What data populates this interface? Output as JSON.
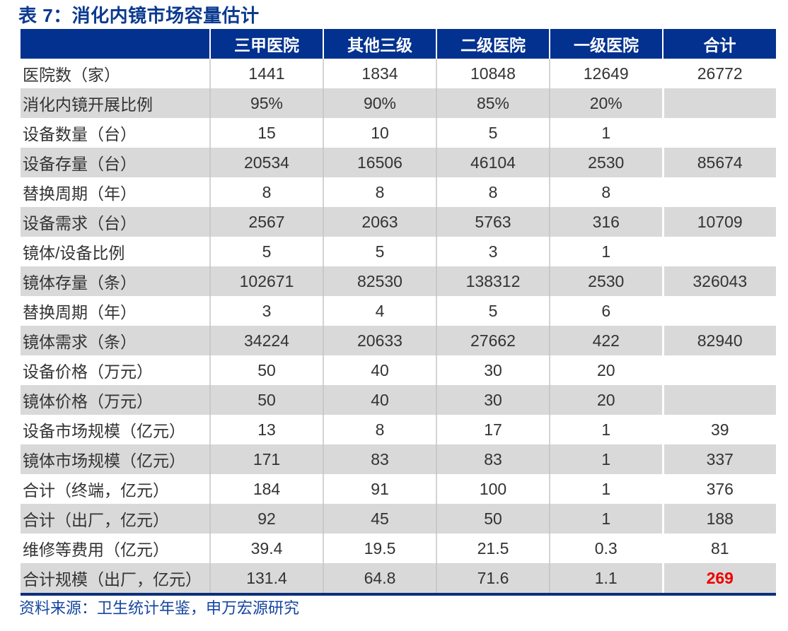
{
  "title": "表 7：消化内镜市场容量估计",
  "table": {
    "headers": [
      "",
      "三甲医院",
      "其他三级",
      "二级医院",
      "一级医院",
      "合计"
    ],
    "rows": [
      {
        "label": "医院数（家）",
        "values": [
          "1441",
          "1834",
          "10848",
          "12649",
          "26772"
        ]
      },
      {
        "label": "消化内镜开展比例",
        "values": [
          "95%",
          "90%",
          "85%",
          "20%",
          ""
        ]
      },
      {
        "label": "设备数量（台）",
        "values": [
          "15",
          "10",
          "5",
          "1",
          ""
        ]
      },
      {
        "label": "设备存量（台）",
        "values": [
          "20534",
          "16506",
          "46104",
          "2530",
          "85674"
        ]
      },
      {
        "label": "替换周期（年）",
        "values": [
          "8",
          "8",
          "8",
          "8",
          ""
        ]
      },
      {
        "label": "设备需求（台）",
        "values": [
          "2567",
          "2063",
          "5763",
          "316",
          "10709"
        ]
      },
      {
        "label": "镜体/设备比例",
        "values": [
          "5",
          "5",
          "3",
          "1",
          ""
        ]
      },
      {
        "label": "镜体存量（条）",
        "values": [
          "102671",
          "82530",
          "138312",
          "2530",
          "326043"
        ]
      },
      {
        "label": "替换周期（年）",
        "values": [
          "3",
          "4",
          "5",
          "6",
          ""
        ]
      },
      {
        "label": "镜体需求（条）",
        "values": [
          "34224",
          "20633",
          "27662",
          "422",
          "82940"
        ]
      },
      {
        "label": "设备价格（万元）",
        "values": [
          "50",
          "40",
          "30",
          "20",
          ""
        ]
      },
      {
        "label": "镜体价格（万元）",
        "values": [
          "50",
          "40",
          "30",
          "20",
          ""
        ]
      },
      {
        "label": "设备市场规模（亿元）",
        "values": [
          "13",
          "8",
          "17",
          "1",
          "39"
        ]
      },
      {
        "label": "镜体市场规模（亿元）",
        "values": [
          "171",
          "83",
          "83",
          "1",
          "337"
        ]
      },
      {
        "label": "合计（终端，亿元）",
        "values": [
          "184",
          "91",
          "100",
          "1",
          "376"
        ]
      },
      {
        "label": "合计（出厂，亿元）",
        "values": [
          "92",
          "45",
          "50",
          "1",
          "188"
        ]
      },
      {
        "label": "维修等费用（亿元）",
        "values": [
          "39.4",
          "19.5",
          "21.5",
          "0.3",
          "81"
        ]
      },
      {
        "label": "合计规模（出厂，亿元）",
        "values": [
          "131.4",
          "64.8",
          "71.6",
          "1.1",
          "269"
        ]
      }
    ],
    "highlight": {
      "row": 17,
      "col": 4,
      "color": "#ee0000"
    }
  },
  "source": "资料来源：卫生统计年鉴，申万宏源研究",
  "colors": {
    "header_bg": "#02318f",
    "title": "#0b3a8f",
    "shade_row": "#d9d9d9",
    "source_text": "#1646a0"
  }
}
